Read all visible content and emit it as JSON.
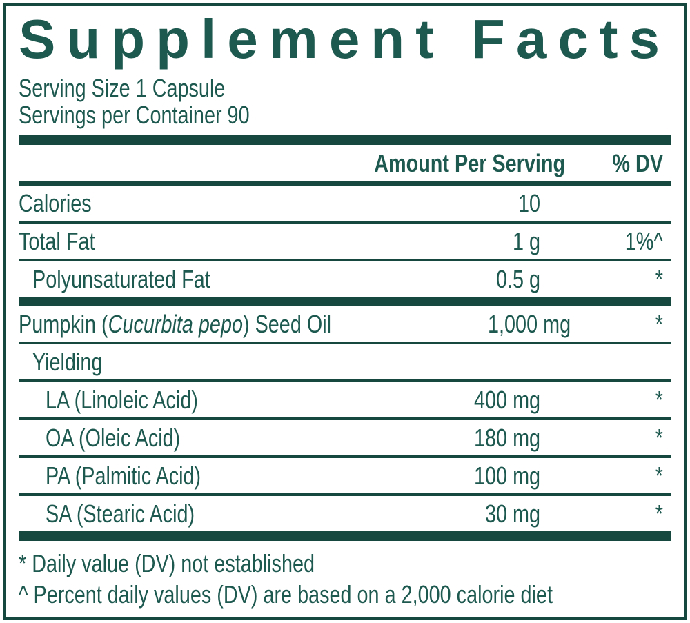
{
  "colors": {
    "accent_bars_border": "#16483F",
    "text": "#1E5950"
  },
  "label": {
    "title": "Supplement Facts",
    "serving_size": "Serving Size 1 Capsule",
    "servings_per_container": "Servings per Container 90",
    "header": {
      "amount": "Amount Per Serving",
      "dv": "% DV"
    },
    "rows": [
      {
        "name": "Calories",
        "amount": "10",
        "dv": ""
      },
      {
        "name": "Total Fat",
        "amount": "1 g",
        "dv": "1%^"
      },
      {
        "name": "Polyunsaturated Fat",
        "amount": "0.5 g",
        "dv": "*"
      },
      {
        "name_prefix": "Pumpkin (",
        "name_italic": "Cucurbita pepo",
        "name_suffix": ") Seed Oil",
        "amount": "1,000 mg",
        "dv": "*"
      },
      {
        "name": "Yielding",
        "amount": "",
        "dv": ""
      },
      {
        "name": "LA (Linoleic Acid)",
        "amount": "400 mg",
        "dv": "*"
      },
      {
        "name": "OA (Oleic Acid)",
        "amount": "180 mg",
        "dv": "*"
      },
      {
        "name": "PA (Palmitic Acid)",
        "amount": "100 mg",
        "dv": "*"
      },
      {
        "name": "SA (Stearic Acid)",
        "amount": "30 mg",
        "dv": "*"
      }
    ],
    "footnotes": [
      "* Daily value (DV) not established",
      "^ Percent daily values (DV) are based on a 2,000 calorie diet"
    ]
  }
}
